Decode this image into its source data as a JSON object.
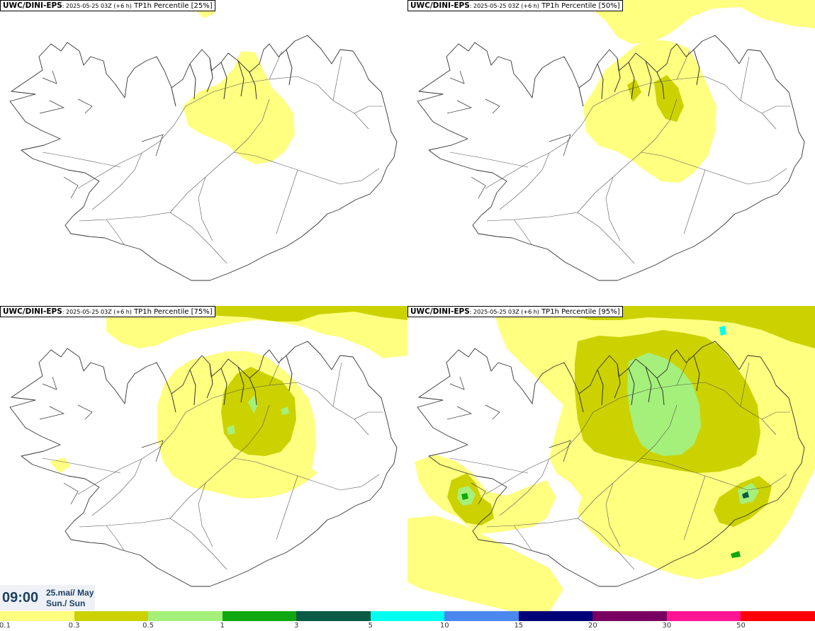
{
  "panels": [
    {
      "source": "UWC/DINI-EPS",
      "run": ": 2025-05-25 03Z (+6 h)",
      "field": " TP1h Percentile [25%]"
    },
    {
      "source": "UWC/DINI-EPS",
      "run": ": 2025-05-25 03Z (+6 h)",
      "field": " TP1h Percentile [50%]"
    },
    {
      "source": "UWC/DINI-EPS",
      "run": ": 2025-05-25 03Z (+6 h)",
      "field": " TP1h Percentile [75%]"
    },
    {
      "source": "UWC/DINI-EPS",
      "run": ": 2025-05-25 03Z (+6 h)",
      "field": " TP1h Percentile [95%]"
    }
  ],
  "timestamp": {
    "time": "09:00",
    "date": "25.maí/ May",
    "weekday": "Sun./ Sun"
  },
  "legend": {
    "labels": [
      "0.1",
      "0.3",
      "0.5",
      "1",
      "3",
      "5",
      "10",
      "15",
      "20",
      "30",
      "50"
    ],
    "colors": [
      "#ffff80",
      "#ccd200",
      "#a5f07a",
      "#10a810",
      "#0a5a45",
      "#00ffee",
      "#4a88ee",
      "#000078",
      "#780060",
      "#ff1493",
      "#ff0000"
    ]
  },
  "colors": {
    "outline": "#333333",
    "road": "#555555"
  }
}
